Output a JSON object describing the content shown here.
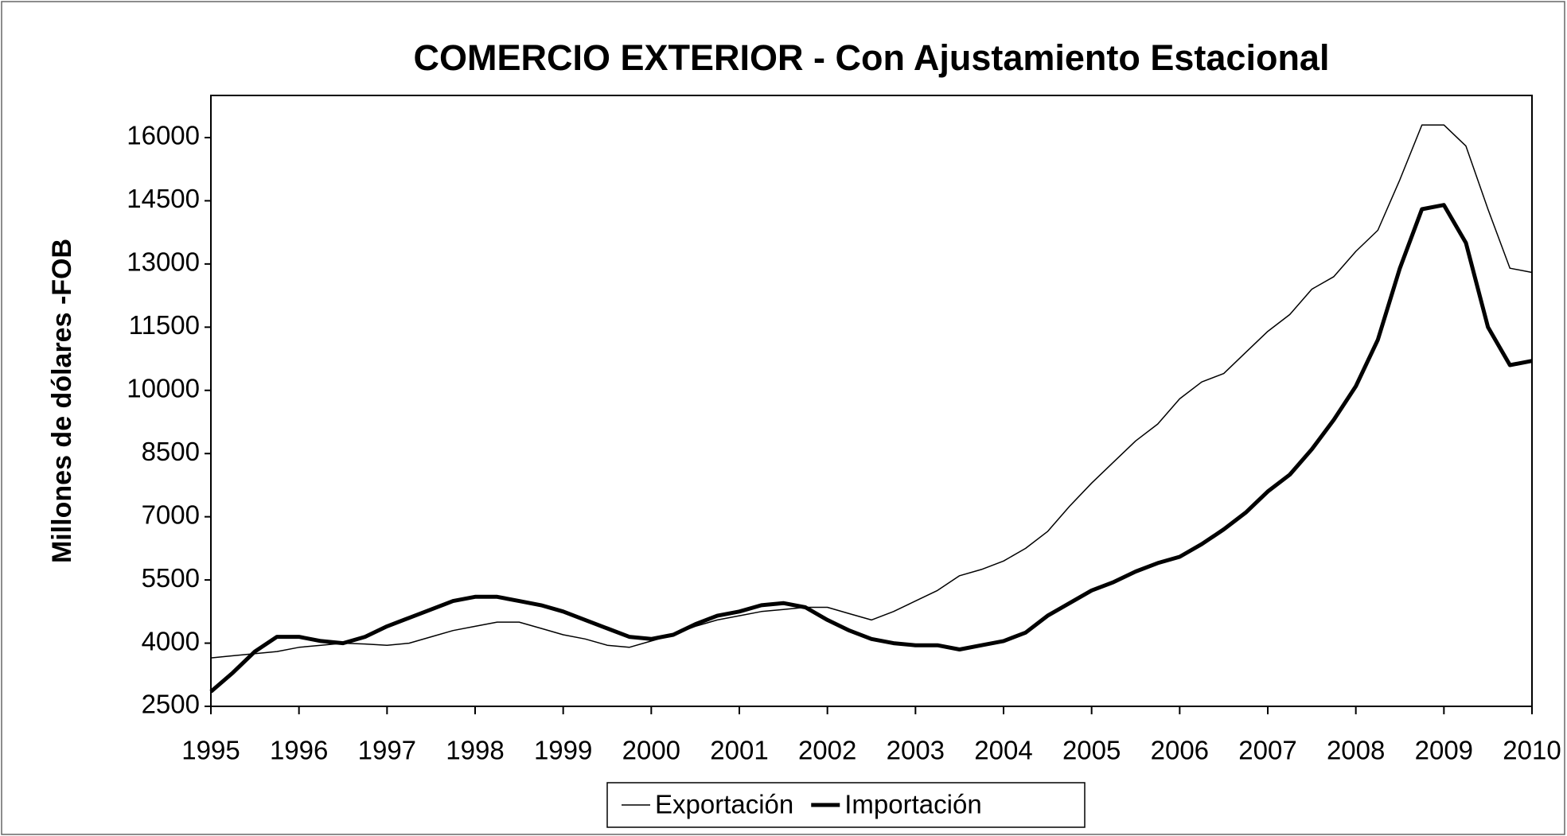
{
  "chart_data": {
    "type": "line",
    "title": "COMERCIO EXTERIOR - Con Ajustamiento Estacional",
    "y_label": "Millones de dólares -FOB",
    "x": [
      1995,
      1995.25,
      1995.5,
      1995.75,
      1996,
      1996.25,
      1996.5,
      1996.75,
      1997,
      1997.25,
      1997.5,
      1997.75,
      1998,
      1998.25,
      1998.5,
      1998.75,
      1999,
      1999.25,
      1999.5,
      1999.75,
      2000,
      2000.25,
      2000.5,
      2000.75,
      2001,
      2001.25,
      2001.5,
      2001.75,
      2002,
      2002.25,
      2002.5,
      2002.75,
      2003,
      2003.25,
      2003.5,
      2003.75,
      2004,
      2004.25,
      2004.5,
      2004.75,
      2005,
      2005.25,
      2005.5,
      2005.75,
      2006,
      2006.25,
      2006.5,
      2006.75,
      2007,
      2007.25,
      2007.5,
      2007.75,
      2008,
      2008.25,
      2008.5,
      2008.75,
      2009,
      2009.25,
      2009.5,
      2009.75,
      2010
    ],
    "series": [
      {
        "name": "Exportación",
        "color": "#000000",
        "width": 1.5,
        "values": [
          3650,
          3700,
          3750,
          3800,
          3900,
          3950,
          4000,
          3980,
          3950,
          4000,
          4150,
          4300,
          4400,
          4500,
          4500,
          4350,
          4200,
          4100,
          3950,
          3900,
          4050,
          4200,
          4400,
          4550,
          4650,
          4750,
          4800,
          4850,
          4850,
          4700,
          4550,
          4750,
          5000,
          5250,
          5600,
          5750,
          5950,
          6250,
          6650,
          7250,
          7800,
          8300,
          8800,
          9200,
          9800,
          10200,
          10400,
          10900,
          11400,
          11800,
          12400,
          12700,
          13300,
          13800,
          15000,
          16300,
          16300,
          15800,
          14300,
          12900,
          12800
        ]
      },
      {
        "name": "Importación",
        "color": "#000000",
        "width": 5,
        "values": [
          2850,
          3300,
          3800,
          4150,
          4150,
          4050,
          4000,
          4150,
          4400,
          4600,
          4800,
          5000,
          5100,
          5100,
          5000,
          4900,
          4750,
          4550,
          4350,
          4150,
          4100,
          4200,
          4450,
          4650,
          4750,
          4900,
          4950,
          4850,
          4550,
          4300,
          4100,
          4000,
          3950,
          3950,
          3850,
          3950,
          4050,
          4250,
          4650,
          4950,
          5250,
          5450,
          5700,
          5900,
          6050,
          6350,
          6700,
          7100,
          7600,
          8000,
          8600,
          9300,
          10100,
          11200,
          12900,
          14300,
          14400,
          13500,
          11500,
          10600,
          10700
        ]
      }
    ],
    "xlim": [
      1995,
      2010
    ],
    "xticks": [
      1995,
      1996,
      1997,
      1998,
      1999,
      2000,
      2001,
      2002,
      2003,
      2004,
      2005,
      2006,
      2007,
      2008,
      2009,
      2010
    ],
    "ylim": [
      2500,
      17000
    ],
    "yticks": [
      2500,
      4000,
      5500,
      7000,
      8500,
      10000,
      11500,
      13000,
      14500,
      16000
    ],
    "grid": false,
    "legend": "bottom"
  }
}
